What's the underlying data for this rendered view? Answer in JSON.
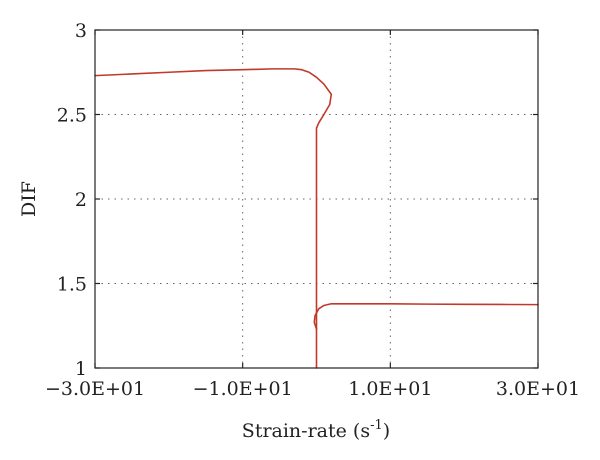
{
  "chart_data": {
    "type": "line",
    "title": "",
    "xlabel": "Strain-rate (s",
    "xlabel_sup": "-1",
    "xlabel_close": ")",
    "ylabel": "DIF",
    "xlim": [
      -30,
      30
    ],
    "ylim": [
      1,
      3
    ],
    "grid": true,
    "xticks": [
      {
        "value": -30,
        "label": "−3.0E+01"
      },
      {
        "value": -10,
        "label": "−1.0E+01"
      },
      {
        "value": 10,
        "label": "1.0E+01"
      },
      {
        "value": 30,
        "label": "3.0E+01"
      }
    ],
    "yticks": [
      {
        "value": 1,
        "label": "1"
      },
      {
        "value": 1.5,
        "label": "1.5"
      },
      {
        "value": 2,
        "label": "2"
      },
      {
        "value": 2.5,
        "label": "2.5"
      },
      {
        "value": 3,
        "label": "3"
      }
    ],
    "series": [
      {
        "color": "#c0392b",
        "points": [
          [
            -30,
            2.73
          ],
          [
            -25,
            2.74
          ],
          [
            -20,
            2.75
          ],
          [
            -15,
            2.76
          ],
          [
            -10,
            2.765
          ],
          [
            -6,
            2.77
          ],
          [
            -4,
            2.77
          ],
          [
            -3,
            2.77
          ],
          [
            -2,
            2.765
          ],
          [
            -1,
            2.75
          ],
          [
            0,
            2.72
          ],
          [
            1,
            2.68
          ],
          [
            2,
            2.62
          ],
          [
            1.8,
            2.56
          ],
          [
            1,
            2.5
          ],
          [
            0.3,
            2.45
          ],
          [
            0,
            2.42
          ],
          [
            0,
            1.6
          ],
          [
            0,
            1.0
          ]
        ]
      },
      {
        "color": "#c0392b",
        "points": [
          [
            0,
            1.23
          ],
          [
            -0.3,
            1.27
          ],
          [
            -0.2,
            1.31
          ],
          [
            0.3,
            1.35
          ],
          [
            1,
            1.37
          ],
          [
            2,
            1.38
          ],
          [
            5,
            1.38
          ],
          [
            10,
            1.38
          ],
          [
            15,
            1.378
          ],
          [
            20,
            1.377
          ],
          [
            25,
            1.376
          ],
          [
            30,
            1.375
          ]
        ]
      }
    ]
  }
}
